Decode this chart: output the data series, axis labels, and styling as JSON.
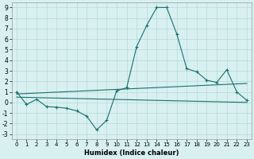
{
  "xlabel": "Humidex (Indice chaleur)",
  "bg_color": "#d8f0f0",
  "grid_color": "#b8d8d8",
  "line_color": "#1a7070",
  "xlim": [
    -0.5,
    23.5
  ],
  "ylim": [
    -3.5,
    9.5
  ],
  "xticks": [
    0,
    1,
    2,
    3,
    4,
    5,
    6,
    7,
    8,
    9,
    10,
    11,
    12,
    13,
    14,
    15,
    16,
    17,
    18,
    19,
    20,
    21,
    22,
    23
  ],
  "yticks": [
    -3,
    -2,
    -1,
    0,
    1,
    2,
    3,
    4,
    5,
    6,
    7,
    8,
    9
  ],
  "main_line_x": [
    0,
    1,
    2,
    3,
    4,
    5,
    6,
    7,
    8,
    9,
    10,
    11,
    12,
    13,
    14,
    15,
    16,
    17,
    18,
    19,
    20,
    21,
    22,
    23
  ],
  "main_line_y": [
    1.0,
    -0.2,
    0.3,
    -0.4,
    -0.45,
    -0.55,
    -0.8,
    -1.3,
    -2.6,
    -1.7,
    1.1,
    1.4,
    5.3,
    7.3,
    9.0,
    9.0,
    6.5,
    3.2,
    2.9,
    2.1,
    1.9,
    3.1,
    1.0,
    0.2
  ],
  "reg_line1_x": [
    0,
    23
  ],
  "reg_line1_y": [
    0.8,
    1.8
  ],
  "reg_line2_x": [
    0,
    23
  ],
  "reg_line2_y": [
    0.5,
    0.0
  ]
}
